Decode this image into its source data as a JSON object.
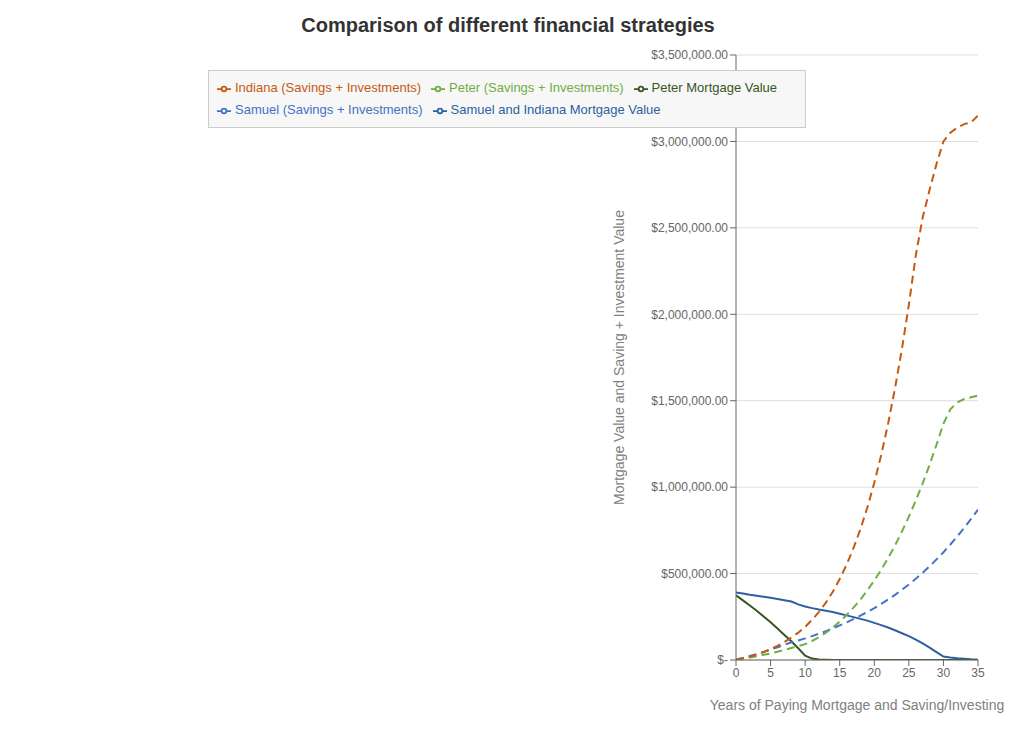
{
  "chart_data": {
    "type": "line",
    "title": "Comparison of different financial strategies",
    "x_label": "Years of Paying Mortgage and Saving/Investing",
    "y_label": "Mortgage Value and Saving + Investment Value",
    "x": [
      0,
      1,
      2,
      3,
      4,
      5,
      6,
      7,
      8,
      9,
      10,
      11,
      12,
      13,
      14,
      15,
      16,
      17,
      18,
      19,
      20,
      21,
      22,
      23,
      24,
      25,
      26,
      27,
      28,
      29,
      30,
      31,
      32,
      33,
      34,
      35
    ],
    "series": [
      {
        "name": "Samuel and Indiana Mortgage Value",
        "color": "#2e5fa3",
        "line_style": "solid",
        "values": [
          390000,
          385000,
          378000,
          372000,
          366000,
          360000,
          353000,
          346000,
          338000,
          322000,
          310000,
          300000,
          292000,
          285000,
          278000,
          268000,
          258000,
          248000,
          238000,
          228000,
          215000,
          202000,
          188000,
          172000,
          155000,
          138000,
          118000,
          96000,
          72000,
          46000,
          20000,
          14000,
          10000,
          7000,
          4000,
          2000
        ]
      },
      {
        "name": "Peter Mortgage Value",
        "color": "#375623",
        "line_style": "solid",
        "values": [
          375000,
          345000,
          315000,
          285000,
          252000,
          218000,
          182000,
          145000,
          108000,
          68000,
          25000,
          8000,
          3000,
          1500,
          500,
          200,
          100,
          50,
          20,
          10,
          5,
          3,
          2,
          1,
          1,
          0,
          0,
          0,
          0,
          0,
          0,
          0,
          0,
          0,
          0,
          0
        ]
      },
      {
        "name": "Samuel (Savings + Investments)",
        "color": "#4472c4",
        "line_style": "dashed",
        "values": [
          2000,
          12000,
          23000,
          35000,
          47000,
          60000,
          74000,
          88000,
          103000,
          113000,
          125000,
          138000,
          152000,
          167000,
          183000,
          200000,
          218000,
          237000,
          257000,
          278000,
          300000,
          325000,
          350000,
          377000,
          406000,
          437000,
          470000,
          505000,
          542000,
          582000,
          623000,
          668000,
          715000,
          764000,
          816000,
          870000
        ]
      },
      {
        "name": "Peter (Savings + Investments)",
        "color": "#70ad47",
        "line_style": "dashed",
        "values": [
          2000,
          8000,
          15000,
          22000,
          30000,
          38000,
          48000,
          58000,
          69000,
          80000,
          92000,
          110000,
          132000,
          158000,
          188000,
          222000,
          260000,
          303000,
          350000,
          403000,
          460000,
          522000,
          590000,
          663000,
          743000,
          829000,
          922000,
          1022000,
          1130000,
          1245000,
          1367000,
          1450000,
          1490000,
          1510000,
          1520000,
          1530000
        ]
      },
      {
        "name": "Indiana (Savings + Investments)",
        "color": "#c55a11",
        "line_style": "dashed",
        "values": [
          2000,
          10000,
          20000,
          32000,
          46000,
          63000,
          82000,
          104000,
          130000,
          158000,
          192000,
          232000,
          278000,
          332000,
          395000,
          468000,
          552000,
          648000,
          758000,
          883000,
          1025000,
          1186000,
          1368000,
          1572000,
          1800000,
          2055000,
          2340000,
          2560000,
          2720000,
          2870000,
          3000000,
          3050000,
          3080000,
          3100000,
          3110000,
          3150000
        ]
      }
    ],
    "xlim": [
      0,
      35
    ],
    "ylim": [
      0,
      3500000
    ],
    "xticks": [
      0,
      5,
      10,
      15,
      20,
      25,
      30,
      35
    ],
    "yticks": [
      {
        "value": 0,
        "label": "$-"
      },
      {
        "value": 500000,
        "label": "$500,000.00"
      },
      {
        "value": 1000000,
        "label": "$1,000,000.00"
      },
      {
        "value": 1500000,
        "label": "$1,500,000.00"
      },
      {
        "value": 2000000,
        "label": "$2,000,000.00"
      },
      {
        "value": 2500000,
        "label": "$2,500,000.00"
      },
      {
        "value": 3000000,
        "label": "$3,000,000.00"
      },
      {
        "value": 3500000,
        "label": "$3,500,000.00"
      }
    ],
    "grid": "y",
    "legend": "upper left"
  }
}
